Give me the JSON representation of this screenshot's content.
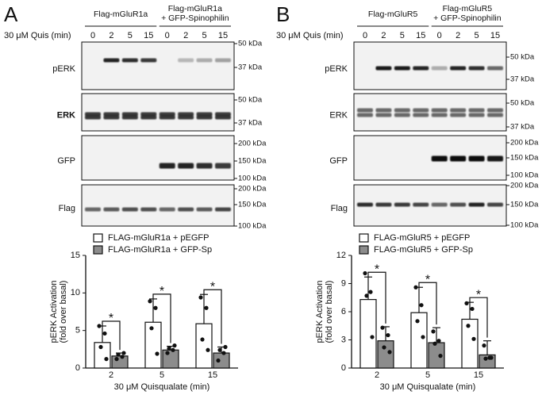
{
  "panels": [
    {
      "letter": "A",
      "treatment_label": "30 μM Quis (min)",
      "groups": [
        [
          "Flag-mGluR1a"
        ],
        [
          "Flag-mGluR1a",
          "+ GFP-Spinophilin"
        ]
      ],
      "lanes": [
        "0",
        "2",
        "5",
        "15",
        "0",
        "2",
        "5",
        "15"
      ],
      "blots": [
        {
          "label": "pERK",
          "markers": [
            "50 kDa",
            "37 kDa"
          ]
        },
        {
          "label": "ERK",
          "markers": [
            "50 kDa",
            "37 kDa"
          ]
        },
        {
          "label": "GFP",
          "markers": [
            "200 kDa",
            "150 kDa",
            "100 kDa"
          ]
        },
        {
          "label": "Flag",
          "markers": [
            "200 kDa",
            "150 kDa",
            "100 kDa"
          ]
        }
      ]
    },
    {
      "letter": "B",
      "treatment_label": "30 μM Quis (min)",
      "groups": [
        [
          "Flag-mGluR5"
        ],
        [
          "Flag-mGluR5",
          "+ GFP-Spinophilin"
        ]
      ],
      "lanes": [
        "0",
        "2",
        "5",
        "15",
        "0",
        "2",
        "5",
        "15"
      ],
      "blots": [
        {
          "label": "pERK",
          "markers": [
            "50 kDa",
            "37 kDa"
          ]
        },
        {
          "label": "ERK",
          "markers": [
            "50 kDa",
            "37 kDa"
          ]
        },
        {
          "label": "GFP",
          "markers": [
            "200 kDa",
            "150 kDa",
            "100 kDa"
          ]
        },
        {
          "label": "Flag",
          "markers": [
            "200 kDa",
            "150 kDa",
            "100 kDa"
          ]
        }
      ]
    }
  ],
  "chart_data": [
    {
      "type": "bar",
      "y_label": [
        "pERK Activation",
        "(fold over basal)"
      ],
      "x_label": "30 μM Quisqualate (min)",
      "categories": [
        "2",
        "5",
        "15"
      ],
      "ylim": [
        0,
        15
      ],
      "yticks": [
        0,
        5,
        10,
        15
      ],
      "annotations": [
        "*",
        "*",
        "*"
      ],
      "series": [
        {
          "name": "FLAG-mGluR1a + pEGFP",
          "color": "#ffffff",
          "values": [
            3.4,
            6.1,
            5.9
          ],
          "errors": [
            2.2,
            3.1,
            3.9
          ],
          "points": [
            [
              5.6,
              4.6,
              2.8,
              1.2
            ],
            [
              8.9,
              8.0,
              5.3,
              1.9
            ],
            [
              9.4,
              8.0,
              3.8,
              2.4
            ]
          ]
        },
        {
          "name": "FLAG-mGluR1a + GFP-Sp",
          "color": "#8c8c8c",
          "values": [
            1.6,
            2.4,
            2.0
          ],
          "errors": [
            0.4,
            0.5,
            0.8
          ],
          "points": [
            [
              1.2,
              1.5,
              1.8,
              2.0
            ],
            [
              2.0,
              2.4,
              2.6,
              3.0
            ],
            [
              1.0,
              2.0,
              2.4,
              2.8
            ]
          ]
        }
      ]
    },
    {
      "type": "bar",
      "y_label": [
        "pERK Activation",
        "(fold over basal)"
      ],
      "x_label": "30 μM Quisqualate (min)",
      "categories": [
        "2",
        "5",
        "15"
      ],
      "ylim": [
        0,
        12
      ],
      "yticks": [
        0,
        3,
        6,
        9,
        12
      ],
      "annotations": [
        "*",
        "*",
        "*"
      ],
      "series": [
        {
          "name": "FLAG-mGluR5 + pEGFP",
          "color": "#ffffff",
          "values": [
            7.3,
            5.9,
            5.2
          ],
          "errors": [
            2.4,
            2.7,
            1.8
          ],
          "points": [
            [
              10.1,
              8.1,
              7.7,
              3.3
            ],
            [
              8.6,
              6.7,
              5.0,
              3.3
            ],
            [
              6.9,
              6.3,
              4.5,
              3.1
            ]
          ]
        },
        {
          "name": "FLAG-mGluR5 + GFP-Sp",
          "color": "#8c8c8c",
          "values": [
            2.9,
            2.7,
            1.4
          ],
          "errors": [
            1.5,
            1.6,
            1.5
          ],
          "points": [
            [
              4.3,
              3.5,
              2.2,
              1.7
            ],
            [
              3.9,
              2.9,
              2.6,
              1.3
            ],
            [
              2.4,
              1.1,
              1.0,
              1.1
            ]
          ]
        }
      ]
    }
  ]
}
